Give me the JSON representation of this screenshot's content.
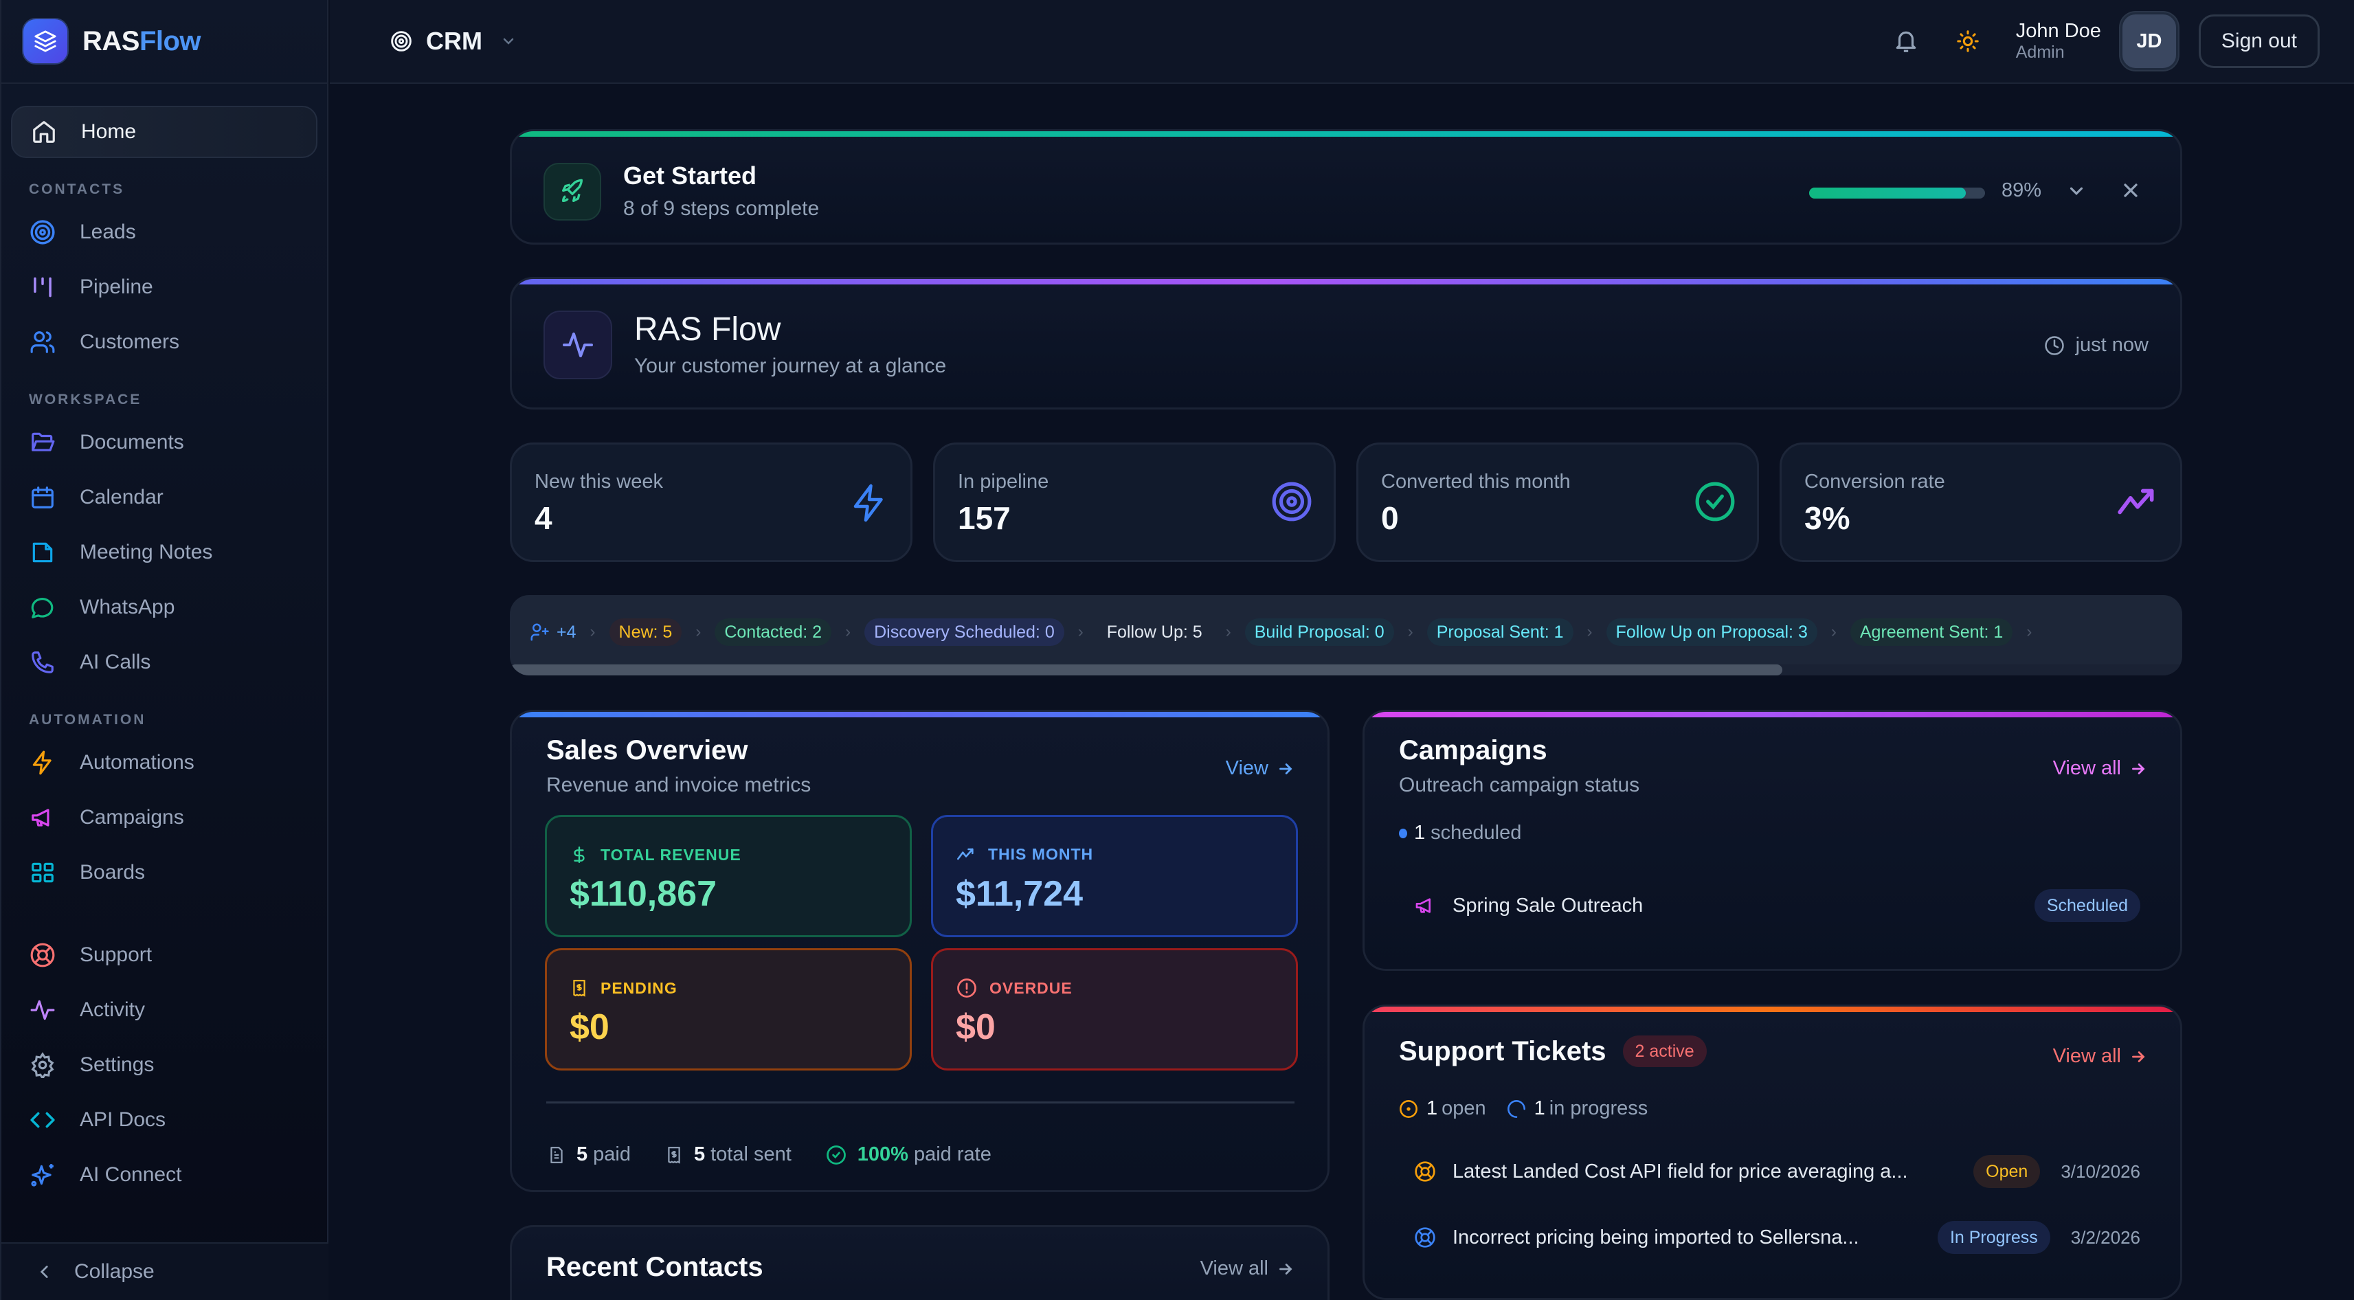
{
  "brand": {
    "name_part1": "RAS",
    "name_part2": "Flow"
  },
  "sidebar": {
    "home": {
      "label": "Home",
      "icon": "home-icon"
    },
    "sections": [
      {
        "title": "CONTACTS",
        "items": [
          {
            "label": "Leads",
            "icon": "target-icon",
            "color": "#3b82f6"
          },
          {
            "label": "Pipeline",
            "icon": "kanban-icon",
            "color": "#a78bfa"
          },
          {
            "label": "Customers",
            "icon": "users-icon",
            "color": "#3b82f6"
          }
        ]
      },
      {
        "title": "WORKSPACE",
        "items": [
          {
            "label": "Documents",
            "icon": "folder-open-icon",
            "color": "#6366f1"
          },
          {
            "label": "Calendar",
            "icon": "calendar-icon",
            "color": "#3b82f6"
          },
          {
            "label": "Meeting Notes",
            "icon": "file-icon",
            "color": "#0ea5e9"
          },
          {
            "label": "WhatsApp",
            "icon": "message-circle-icon",
            "color": "#10b981"
          },
          {
            "label": "AI Calls",
            "icon": "phone-icon",
            "color": "#6366f1"
          }
        ]
      },
      {
        "title": "AUTOMATION",
        "items": [
          {
            "label": "Automations",
            "icon": "zap-icon",
            "color": "#f59e0b"
          },
          {
            "label": "Campaigns",
            "icon": "megaphone-icon",
            "color": "#d946ef"
          },
          {
            "label": "Boards",
            "icon": "grid-icon",
            "color": "#06b6d4"
          }
        ]
      }
    ],
    "bottom_items": [
      {
        "label": "Support",
        "icon": "life-buoy-icon",
        "color": "#f87171"
      },
      {
        "label": "Activity",
        "icon": "activity-icon",
        "color": "#c084fc"
      },
      {
        "label": "Settings",
        "icon": "gear-icon",
        "color": "#94a3b8"
      },
      {
        "label": "API Docs",
        "icon": "code-icon",
        "color": "#06b6d4"
      },
      {
        "label": "AI Connect",
        "icon": "sparkles-icon",
        "color": "#3b82f6"
      }
    ],
    "collapse_label": "Collapse"
  },
  "header": {
    "module": "CRM",
    "user_name": "John Doe",
    "user_role": "Admin",
    "avatar_initials": "JD",
    "sign_out_label": "Sign out"
  },
  "get_started": {
    "title": "Get Started",
    "subtitle": "8 of 9 steps complete",
    "progress_percent": 89,
    "progress_label": "89%"
  },
  "overview": {
    "title": "RAS Flow",
    "subtitle": "Your customer journey at a glance",
    "updated": "just now"
  },
  "stats": [
    {
      "label": "New this week",
      "value": "4",
      "icon": "zap-icon",
      "color": "#3b82f6"
    },
    {
      "label": "In pipeline",
      "value": "157",
      "icon": "target-icon",
      "color": "#6366f1"
    },
    {
      "label": "Converted this month",
      "value": "0",
      "icon": "check-circle-icon",
      "color": "#10b981"
    },
    {
      "label": "Conversion rate",
      "value": "3%",
      "icon": "trending-up-icon",
      "color": "#a855f7"
    }
  ],
  "pipeline": {
    "new_contacts": "+4",
    "stages": [
      {
        "label": "New: 5",
        "color": "#fbbf24",
        "bg": "#2a2430"
      },
      {
        "label": "Contacted: 2",
        "color": "#6ee7b7",
        "bg": "#1a2e34"
      },
      {
        "label": "Discovery Scheduled: 0",
        "color": "#a5b4fc",
        "bg": "#222c52"
      },
      {
        "label": "Follow Up: 5",
        "color": "#e2e8f0",
        "bg": "transparent"
      },
      {
        "label": "Build Proposal: 0",
        "color": "#67e8f9",
        "bg": "#1a2f40"
      },
      {
        "label": "Proposal Sent: 1",
        "color": "#67e8f9",
        "bg": "#1a2f40"
      },
      {
        "label": "Follow Up on Proposal: 3",
        "color": "#67e8f9",
        "bg": "#1a2f40"
      },
      {
        "label": "Agreement Sent: 1",
        "color": "#6ee7b7",
        "bg": "#1a2e34"
      }
    ]
  },
  "sales": {
    "title": "Sales Overview",
    "subtitle": "Revenue and invoice metrics",
    "link": "View",
    "metrics": [
      {
        "label": "TOTAL REVENUE",
        "value": "$110,867",
        "icon": "dollar-icon"
      },
      {
        "label": "THIS MONTH",
        "value": "$11,724",
        "icon": "trending-up-icon"
      },
      {
        "label": "PENDING",
        "value": "$0",
        "icon": "receipt-icon"
      },
      {
        "label": "OVERDUE",
        "value": "$0",
        "icon": "alert-circle-icon"
      }
    ],
    "footer": {
      "paid_count": "5",
      "paid_label": "paid",
      "sent_count": "5",
      "sent_label": "total sent",
      "rate": "100%",
      "rate_label": "paid rate"
    }
  },
  "campaigns": {
    "title": "Campaigns",
    "subtitle": "Outreach campaign status",
    "link": "View all",
    "scheduled_count": "1",
    "scheduled_label": "scheduled",
    "items": [
      {
        "name": "Spring Sale Outreach",
        "status": "Scheduled"
      }
    ]
  },
  "support": {
    "title": "Support Tickets",
    "active_badge": "2 active",
    "link": "View all",
    "open_count": "1",
    "open_label": "open",
    "progress_count": "1",
    "progress_label": "in progress",
    "tickets": [
      {
        "title": "Latest Landed Cost API field for price averaging a...",
        "status": "Open",
        "date": "3/10/2026"
      },
      {
        "title": "Incorrect pricing being imported to Sellersna...",
        "status": "In Progress",
        "date": "3/2/2026"
      }
    ]
  },
  "recent_contacts": {
    "title": "Recent Contacts",
    "link": "View all"
  }
}
